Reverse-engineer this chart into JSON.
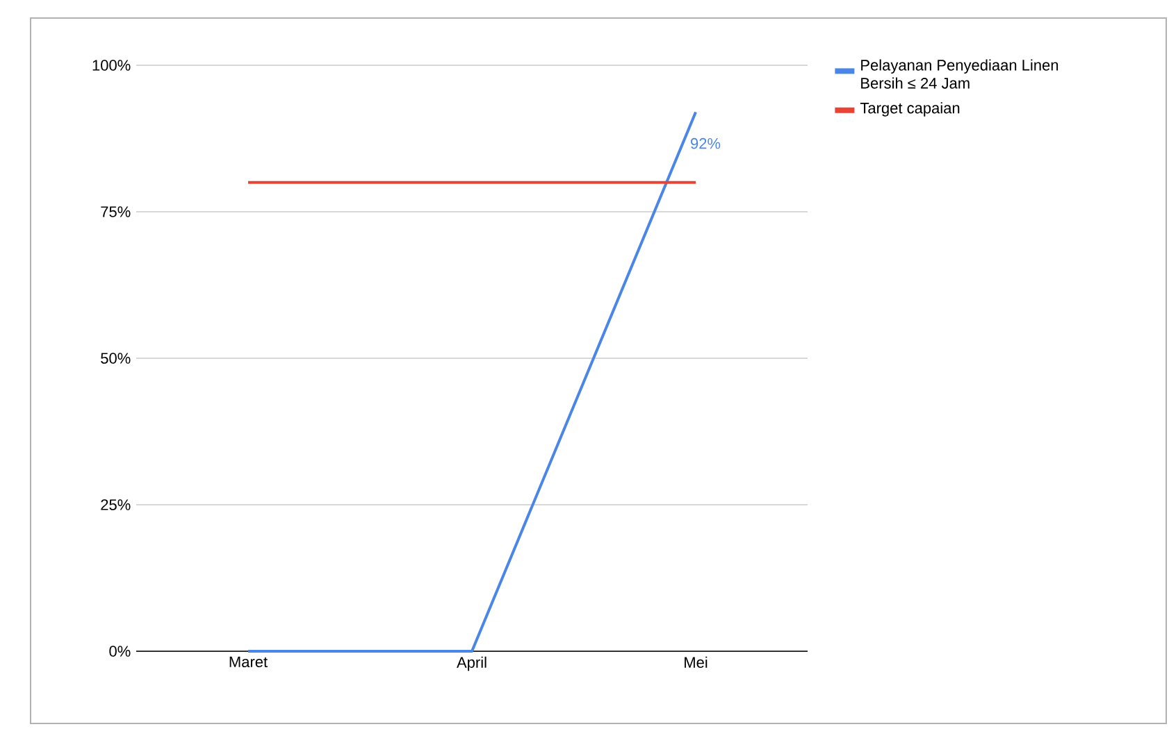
{
  "chart_data": {
    "type": "line",
    "categories": [
      "Maret",
      "April",
      "Mei"
    ],
    "series": [
      {
        "name": "Pelayanan Penyediaan Linen Bersih ≤ 24 Jam",
        "color": "#4a86e8",
        "values": [
          0,
          0,
          92
        ],
        "value_labels": [
          null,
          null,
          "92%"
        ]
      },
      {
        "name": "Target capaian",
        "color": "#ea4335",
        "values": [
          80,
          80,
          80
        ]
      }
    ],
    "ylim": [
      0,
      100
    ],
    "yticks": [
      {
        "value": 0,
        "label": "0%"
      },
      {
        "value": 25,
        "label": "25%"
      },
      {
        "value": 50,
        "label": "50%"
      },
      {
        "value": 75,
        "label": "75%"
      },
      {
        "value": 100,
        "label": "100%"
      }
    ],
    "grid": "y",
    "legend": "top right",
    "marker": "none",
    "line_style": "solid"
  }
}
